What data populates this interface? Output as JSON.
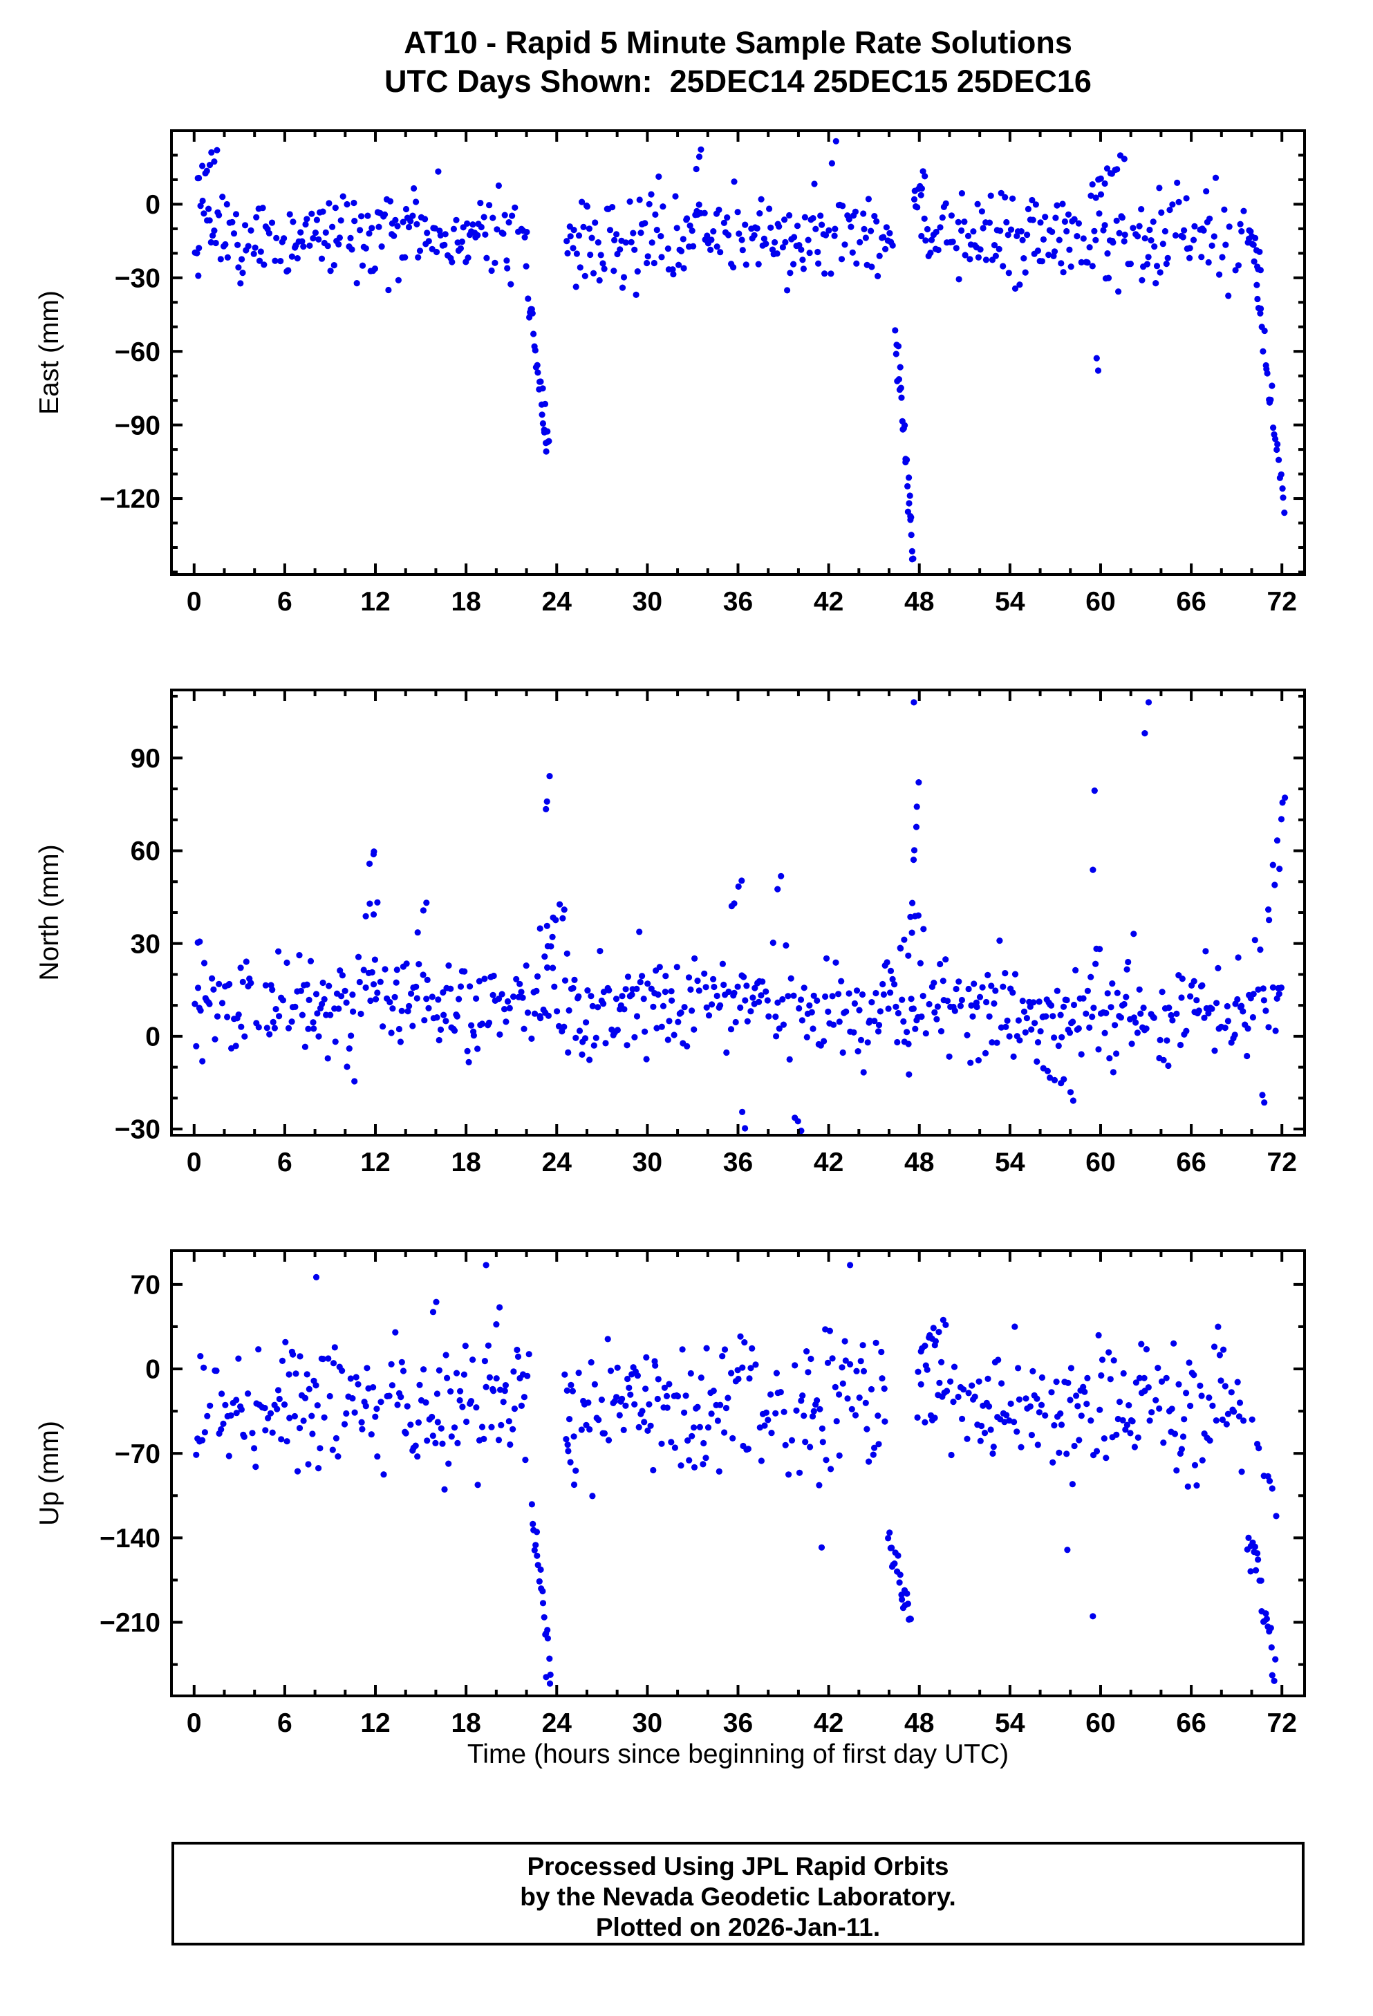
{
  "footer_lines": [
    "Processed Using JPL Rapid Orbits",
    "by the Nevada Geodetic Laboratory.",
    "Plotted on 2026-Jan-11."
  ],
  "chart_data": {
    "type": "scatter",
    "title_line1": "AT10 - Rapid 5 Minute Sample Rate Solutions",
    "title_line2": "UTC Days Shown:  25DEC14 25DEC15 25DEC16",
    "xlabel": "Time (hours since beginning of first day UTC)",
    "x_ticks": [
      0,
      6,
      12,
      18,
      24,
      30,
      36,
      42,
      48,
      54,
      60,
      66,
      72
    ],
    "x_minor_step": 2,
    "xlim": [
      -1.5,
      73.5
    ],
    "sample_interval_minutes": 5,
    "marker": {
      "color": "#0000EE",
      "radius": 4.6
    },
    "frame_color": "#000000",
    "panels": [
      {
        "name": "east",
        "ylabel": "East (mm)",
        "ylim": [
          -151,
          30
        ],
        "yticks": [
          0,
          -30,
          -60,
          -90,
          -120
        ],
        "y_minor_step": 10,
        "seed": 101,
        "baseline": {
          "mean": -13,
          "sd": 9.5,
          "clip": [
            -46,
            23
          ],
          "keep": 0.85,
          "dt": 0.1,
          "gaps": [
            [
              22.1,
              24.5
            ],
            [
              46.3,
              48.1
            ],
            [
              69.7,
              73.5
            ]
          ]
        },
        "events": [
          {
            "x0": 0.1,
            "x1": 1.6,
            "n": 9,
            "y0": 8,
            "y1": 20,
            "spread": 5
          },
          {
            "x0": 22.1,
            "x1": 23.5,
            "n": 24,
            "y0": -38,
            "y1": -100,
            "spread": 8
          },
          {
            "x0": 23.0,
            "x1": 23.4,
            "n": 3,
            "y0": -88,
            "y1": -99,
            "spread": 3
          },
          {
            "x0": 46.4,
            "x1": 47.6,
            "n": 26,
            "y0": -45,
            "y1": -148,
            "spread": 10
          },
          {
            "x0": 47.3,
            "x1": 47.7,
            "n": 4,
            "y0": -120,
            "y1": -150,
            "spread": 4
          },
          {
            "x0": 47.6,
            "x1": 48.4,
            "n": 10,
            "y0": -5,
            "y1": 12,
            "spread": 6
          },
          {
            "x0": 33.1,
            "x1": 33.7,
            "n": 3,
            "y0": 16,
            "y1": 22,
            "spread": 2
          },
          {
            "x0": 42.2,
            "x1": 42.6,
            "n": 2,
            "y0": 18,
            "y1": 23,
            "spread": 2
          },
          {
            "x0": 59.4,
            "x1": 61.6,
            "n": 12,
            "y0": 6,
            "y1": 18,
            "spread": 4
          },
          {
            "x0": 59.7,
            "x1": 59.9,
            "n": 2,
            "y0": -62,
            "y1": -66,
            "spread": 2
          },
          {
            "x0": 69.7,
            "x1": 70.6,
            "n": 14,
            "y0": -8,
            "y1": -25,
            "spread": 7
          },
          {
            "x0": 70.3,
            "x1": 72.2,
            "n": 26,
            "y0": -35,
            "y1": -122,
            "spread": 9
          }
        ]
      },
      {
        "name": "north",
        "ylabel": "North (mm)",
        "ylim": [
          -32,
          112
        ],
        "yticks": [
          90,
          60,
          30,
          0,
          -30
        ],
        "y_minor_step": 10,
        "seed": 202,
        "baseline": {
          "mean": 10,
          "sd": 8.5,
          "clip": [
            -23,
            36
          ],
          "keep": 0.85,
          "dt": 0.1,
          "gaps": []
        },
        "events": [
          {
            "x0": 0.2,
            "x1": 0.5,
            "n": 2,
            "y0": 29,
            "y1": 31,
            "spread": 1
          },
          {
            "x0": 11.5,
            "x1": 12.1,
            "n": 3,
            "y0": 56,
            "y1": 60,
            "spread": 2
          },
          {
            "x0": 11.3,
            "x1": 12.4,
            "n": 4,
            "y0": 38,
            "y1": 45,
            "spread": 3
          },
          {
            "x0": 14.8,
            "x1": 15.4,
            "n": 3,
            "y0": 36,
            "y1": 43,
            "spread": 3
          },
          {
            "x0": 22.9,
            "x1": 24.6,
            "n": 10,
            "y0": 28,
            "y1": 44,
            "spread": 6
          },
          {
            "x0": 23.2,
            "x1": 23.6,
            "n": 3,
            "y0": 73,
            "y1": 82,
            "spread": 3
          },
          {
            "x0": 35.5,
            "x1": 36.3,
            "n": 4,
            "y0": 40,
            "y1": 51,
            "spread": 4
          },
          {
            "x0": 38.5,
            "x1": 39.1,
            "n": 2,
            "y0": 47,
            "y1": 51,
            "spread": 2
          },
          {
            "x0": 36.2,
            "x1": 36.6,
            "n": 2,
            "y0": -24,
            "y1": -28,
            "spread": 2
          },
          {
            "x0": 39.7,
            "x1": 40.3,
            "n": 3,
            "y0": -25,
            "y1": -30,
            "spread": 2
          },
          {
            "x0": 46.7,
            "x1": 48.3,
            "n": 8,
            "y0": 28,
            "y1": 42,
            "spread": 5
          },
          {
            "x0": 47.5,
            "x1": 48.0,
            "n": 6,
            "y0": 45,
            "y1": 78,
            "spread": 7
          },
          {
            "x0": 47.6,
            "x1": 47.8,
            "n": 1,
            "y0": 108,
            "y1": 108,
            "spread": 0
          },
          {
            "x0": 55.7,
            "x1": 58.4,
            "n": 9,
            "y0": -10,
            "y1": -20,
            "spread": 4
          },
          {
            "x0": 59.4,
            "x1": 59.7,
            "n": 2,
            "y0": 55,
            "y1": 80,
            "spread": 3
          },
          {
            "x0": 62.9,
            "x1": 63.2,
            "n": 1,
            "y0": 98,
            "y1": 98,
            "spread": 0
          },
          {
            "x0": 63.0,
            "x1": 63.3,
            "n": 1,
            "y0": 108,
            "y1": 108,
            "spread": 0
          },
          {
            "x0": 70.5,
            "x1": 71.1,
            "n": 2,
            "y0": -19,
            "y1": -23,
            "spread": 2
          },
          {
            "x0": 71.0,
            "x1": 72.3,
            "n": 9,
            "y0": 35,
            "y1": 78,
            "spread": 9
          }
        ]
      },
      {
        "name": "up",
        "ylabel": "Up (mm)",
        "ylim": [
          -271,
          98
        ],
        "yticks": [
          70,
          0,
          -70,
          -140,
          -210
        ],
        "y_minor_step": 35,
        "seed": 303,
        "baseline": {
          "mean": -32,
          "sd": 27,
          "clip": [
            -112,
            38
          ],
          "keep": 0.85,
          "dt": 0.1,
          "gaps": [
            [
              22.2,
              24.5
            ],
            [
              45.8,
              47.8
            ],
            [
              69.6,
              73.5
            ]
          ]
        },
        "events": [
          {
            "x0": 7.9,
            "x1": 8.2,
            "n": 1,
            "y0": 76,
            "y1": 76,
            "spread": 0
          },
          {
            "x0": 19.3,
            "x1": 19.6,
            "n": 1,
            "y0": 86,
            "y1": 86,
            "spread": 0
          },
          {
            "x0": 15.8,
            "x1": 16.2,
            "n": 2,
            "y0": 48,
            "y1": 56,
            "spread": 3
          },
          {
            "x0": 20.0,
            "x1": 20.4,
            "n": 2,
            "y0": 40,
            "y1": 55,
            "spread": 4
          },
          {
            "x0": 22.3,
            "x1": 23.6,
            "n": 20,
            "y0": -120,
            "y1": -245,
            "spread": 18
          },
          {
            "x0": 23.3,
            "x1": 23.6,
            "n": 2,
            "y0": -255,
            "y1": -262,
            "spread": 3
          },
          {
            "x0": 24.6,
            "x1": 25.2,
            "n": 4,
            "y0": -60,
            "y1": -90,
            "spread": 8
          },
          {
            "x0": 41.5,
            "x1": 41.8,
            "n": 1,
            "y0": -148,
            "y1": -148,
            "spread": 0
          },
          {
            "x0": 43.4,
            "x1": 43.7,
            "n": 1,
            "y0": 86,
            "y1": 86,
            "spread": 0
          },
          {
            "x0": 45.9,
            "x1": 47.5,
            "n": 22,
            "y0": -140,
            "y1": -215,
            "spread": 14
          },
          {
            "x0": 48.0,
            "x1": 49.8,
            "n": 10,
            "y0": 15,
            "y1": 40,
            "spread": 9
          },
          {
            "x0": 57.6,
            "x1": 58.0,
            "n": 1,
            "y0": -150,
            "y1": -150,
            "spread": 0
          },
          {
            "x0": 59.4,
            "x1": 59.7,
            "n": 1,
            "y0": -205,
            "y1": -205,
            "spread": 0
          },
          {
            "x0": 69.7,
            "x1": 71.6,
            "n": 24,
            "y0": -130,
            "y1": -245,
            "spread": 22
          },
          {
            "x0": 70.0,
            "x1": 71.8,
            "n": 8,
            "y0": -60,
            "y1": -110,
            "spread": 15
          }
        ]
      }
    ]
  }
}
